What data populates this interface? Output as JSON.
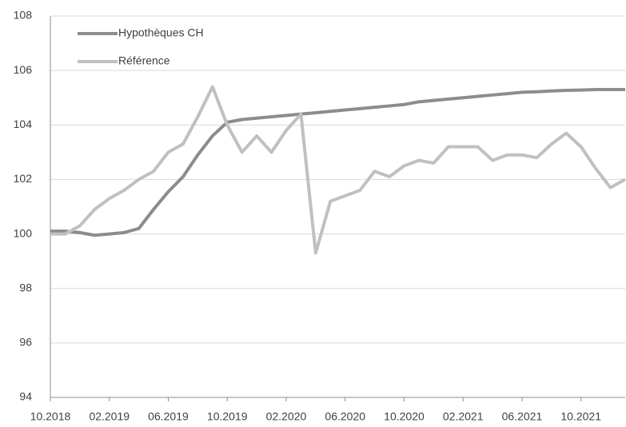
{
  "chart_data": {
    "type": "line",
    "x": [
      "10.2018",
      null,
      null,
      null,
      "02.2019",
      null,
      null,
      null,
      "06.2019",
      null,
      null,
      null,
      "10.2019",
      null,
      null,
      null,
      "02.2020",
      null,
      null,
      null,
      "06.2020",
      null,
      null,
      null,
      "10.2020",
      null,
      null,
      null,
      "02.2021",
      null,
      null,
      null,
      "06.2021",
      null,
      null,
      null,
      "10.2021",
      null,
      null,
      null
    ],
    "series": [
      {
        "name": "Hypothèques CH",
        "color": "#8c8c8c",
        "values": [
          100.1,
          100.1,
          100.05,
          99.95,
          100.0,
          100.05,
          100.2,
          100.9,
          101.55,
          102.1,
          102.9,
          103.6,
          104.1,
          104.2,
          104.25,
          104.3,
          104.35,
          104.4,
          104.45,
          104.5,
          104.55,
          104.6,
          104.65,
          104.7,
          104.75,
          104.85,
          104.9,
          104.95,
          105.0,
          105.05,
          105.1,
          105.15,
          105.2,
          105.22,
          105.25,
          105.27,
          105.28,
          105.3,
          105.3,
          105.3
        ]
      },
      {
        "name": "Référence",
        "color": "#c0c0c0",
        "values": [
          100.0,
          100.0,
          100.3,
          100.9,
          101.3,
          101.6,
          102.0,
          102.3,
          103.0,
          103.3,
          104.3,
          105.4,
          104.0,
          103.0,
          103.6,
          103.0,
          103.8,
          104.4,
          99.3,
          101.2,
          101.4,
          101.6,
          102.3,
          102.1,
          102.5,
          102.7,
          102.6,
          103.2,
          103.2,
          103.2,
          102.7,
          102.9,
          102.9,
          102.8,
          103.3,
          103.7,
          103.2,
          102.4,
          101.7,
          102.0
        ]
      }
    ],
    "ylim": [
      94,
      108
    ],
    "yticks": [
      94,
      96,
      98,
      100,
      102,
      104,
      106,
      108
    ],
    "grid": true
  }
}
